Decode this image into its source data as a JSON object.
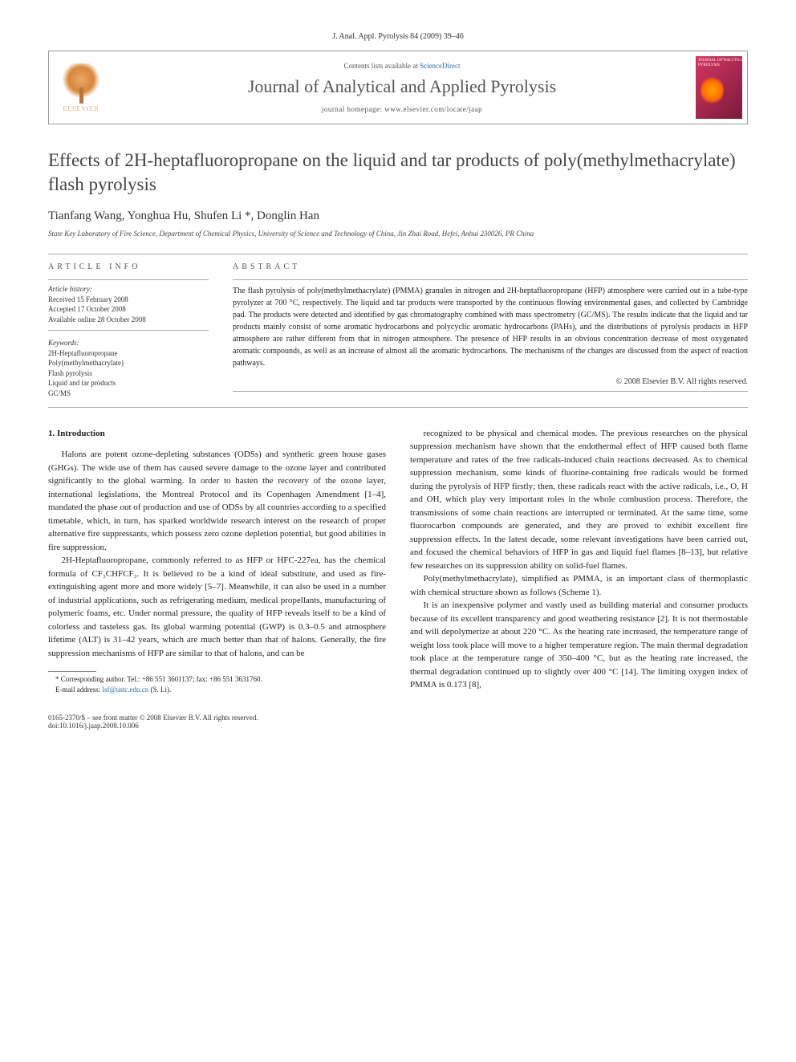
{
  "header": {
    "citation": "J. Anal. Appl. Pyrolysis 84 (2009) 39–46",
    "contents_prefix": "Contents lists available at ",
    "contents_link": "ScienceDirect",
    "journal_name": "Journal of Analytical and Applied Pyrolysis",
    "homepage_prefix": "journal homepage: ",
    "homepage_url": "www.elsevier.com/locate/jaap",
    "publisher": "ELSEVIER"
  },
  "article": {
    "title": "Effects of 2H-heptafluoropropane on the liquid and tar products of poly(methylmethacrylate) flash pyrolysis",
    "authors_html": "Tianfang Wang, Yonghua Hu, Shufen Li *, Donglin Han",
    "affiliation": "State Key Laboratory of Fire Science, Department of Chemical Physics, University of Science and Technology of China, Jin Zhai Road, Hefei, Anhui 230026, PR China"
  },
  "info": {
    "heading": "ARTICLE INFO",
    "history_label": "Article history:",
    "received": "Received 15 February 2008",
    "accepted": "Accepted 17 October 2008",
    "online": "Available online 28 October 2008",
    "keywords_label": "Keywords:",
    "keywords": [
      "2H-Heptafluoropropane",
      "Poly(methylmethacrylate)",
      "Flash pyrolysis",
      "Liquid and tar products",
      "GC/MS"
    ]
  },
  "abstract": {
    "heading": "ABSTRACT",
    "text": "The flash pyrolysis of poly(methylmethacrylate) (PMMA) granules in nitrogen and 2H-heptafluoropropane (HFP) atmosphere were carried out in a tube-type pyrolyzer at 700 °C, respectively. The liquid and tar products were transported by the continuous flowing environmental gases, and collected by Cambridge pad. The products were detected and identified by gas chromatography combined with mass spectrometry (GC/MS). The results indicate that the liquid and tar products mainly consist of some aromatic hydrocarbons and polycyclic aromatic hydrocarbons (PAHs), and the distributions of pyrolysis products in HFP atmosphere are rather different from that in nitrogen atmosphere. The presence of HFP results in an obvious concentration decrease of most oxygenated aromatic compounds, as well as an increase of almost all the aromatic hydrocarbons. The mechanisms of the changes are discussed from the aspect of reaction pathways.",
    "copyright": "© 2008 Elsevier B.V. All rights reserved."
  },
  "body": {
    "section1_heading": "1. Introduction",
    "p1": "Halons are potent ozone-depleting substances (ODSs) and synthetic green house gases (GHGs). The wide use of them has caused severe damage to the ozone layer and contributed significantly to the global warming. In order to hasten the recovery of the ozone layer, international legislations, the Montreal Protocol and its Copenhagen Amendment [1–4], mandated the phase out of production and use of ODSs by all countries according to a specified timetable, which, in turn, has sparked worldwide research interest on the research of proper alternative fire suppressants, which possess zero ozone depletion potential, but good abilities in fire suppression.",
    "p2": "2H-Heptafluoropropane, commonly referred to as HFP or HFC-227ea, has the chemical formula of CF₃CHFCF₃. It is believed to be a kind of ideal substitute, and used as fire-extinguishing agent more and more widely [5–7]. Meanwhile, it can also be used in a number of industrial applications, such as refrigerating medium, medical propellants, manufacturing of polymeric foams, etc. Under normal pressure, the quality of HFP reveals itself to be a kind of colorless and tasteless gas. Its global warming potential (GWP) is 0.3–0.5 and atmosphere lifetime (ALT) is 31–42 years, which are much better than that of halons. Generally, the fire suppression mechanisms of HFP are similar to that of halons, and can be",
    "p3": "recognized to be physical and chemical modes. The previous researches on the physical suppression mechanism have shown that the endothermal effect of HFP caused both flame temperature and rates of the free radicals-induced chain reactions decreased. As to chemical suppression mechanism, some kinds of fluorine-containing free radicals would be formed during the pyrolysis of HFP firstly; then, these radicals react with the active radicals, i.e., O, H and OH, which play very important roles in the whole combustion process. Therefore, the transmissions of some chain reactions are interrupted or terminated. At the same time, some fluorocarbon compounds are generated, and they are proved to exhibit excellent fire suppression effects. In the latest decade, some relevant investigations have been carried out, and focused the chemical behaviors of HFP in gas and liquid fuel flames [8–13], but relative few researches on its suppression ability on solid-fuel flames.",
    "p4": "Poly(methylmethacrylate), simplified as PMMA, is an important class of thermoplastic with chemical structure shown as follows (Scheme 1).",
    "p5": "It is an inexpensive polymer and vastly used as building material and consumer products because of its excellent transparency and good weathering resistance [2]. It is not thermostable and will depolymerize at about 220 °C. As the heating rate increased, the temperature range of weight loss took place will move to a higher temperature region. The main thermal degradation took place at the temperature range of 350–400 °C, but as the heating rate increased, the thermal degradation continued up to slightly over 400 °C [14]. The limiting oxygen index of PMMA is 0.173 [8],"
  },
  "footnote": {
    "corr": "* Corresponding author. Tel.: +86 551 3601137; fax: +86 551 3631760.",
    "email_label": "E-mail address: ",
    "email": "lsf@ustc.edu.cn",
    "email_suffix": " (S. Li)."
  },
  "footer": {
    "left_line1": "0165-2370/$ – see front matter © 2008 Elsevier B.V. All rights reserved.",
    "left_line2": "doi:10.1016/j.jaap.2008.10.006"
  },
  "colors": {
    "link": "#1e6fb8",
    "elsevier_orange": "#e8a868",
    "cover_red": "#d6355f"
  }
}
